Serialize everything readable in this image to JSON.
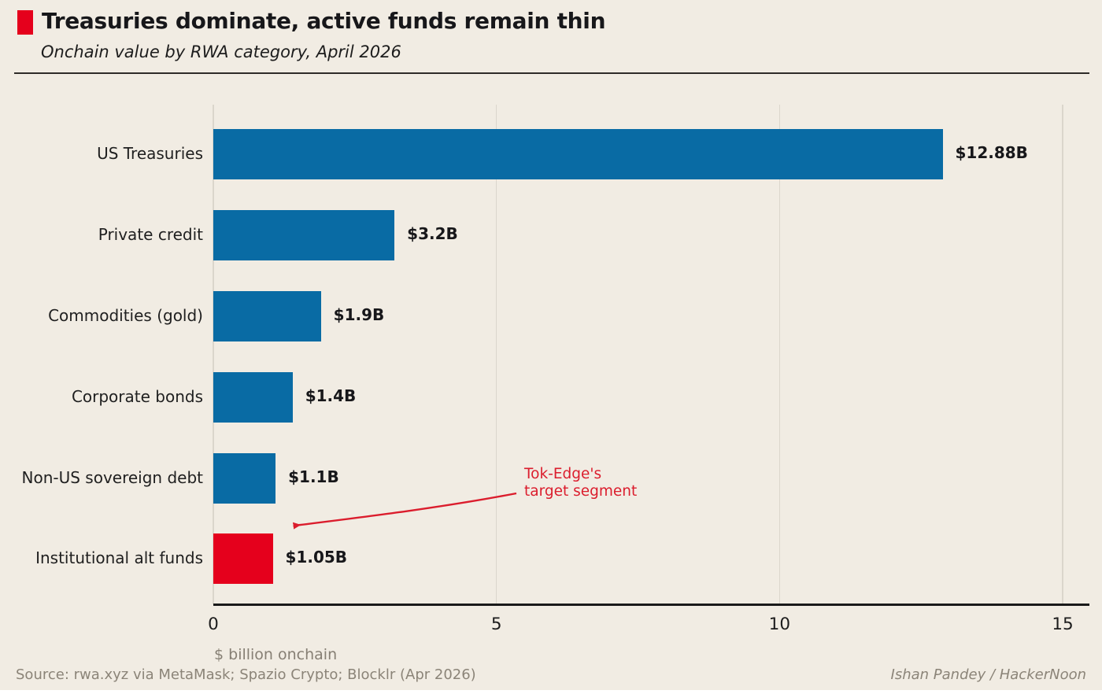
{
  "header": {
    "title": "Treasuries dominate, active funds remain thin",
    "subtitle": "Onchain value by RWA category, April 2026",
    "accent_color": "#e5001c"
  },
  "chart_data": {
    "type": "bar",
    "orientation": "horizontal",
    "title": "Treasuries dominate, active funds remain thin",
    "subtitle": "Onchain value by RWA category, April 2026",
    "categories": [
      "US Treasuries",
      "Private credit",
      "Commodities (gold)",
      "Corporate bonds",
      "Non-US sovereign debt",
      "Institutional alt funds"
    ],
    "values": [
      12.88,
      3.2,
      1.9,
      1.4,
      1.1,
      1.05
    ],
    "value_labels": [
      "$12.88B",
      "$3.2B",
      "$1.9B",
      "$1.4B",
      "$1.1B",
      "$1.05B"
    ],
    "bar_colors": [
      "#096ba4",
      "#096ba4",
      "#096ba4",
      "#096ba4",
      "#096ba4",
      "#e5001c"
    ],
    "highlight_index": 5,
    "xlabel": "$ billion onchain",
    "x_ticks": [
      0,
      5,
      10,
      15
    ],
    "xlim": [
      0,
      15
    ],
    "grid": "vertical",
    "gridline_color": "#dbd6cc",
    "annotation": {
      "text_line1": "Tok-Edge's",
      "text_line2": "target segment",
      "color": "#db1d2d",
      "points_to": "Institutional alt funds"
    }
  },
  "footer": {
    "source": "Source: rwa.xyz via MetaMask; Spazio Crypto; Blocklr (Apr 2026)",
    "credit": "Ishan Pandey / HackerNoon"
  }
}
